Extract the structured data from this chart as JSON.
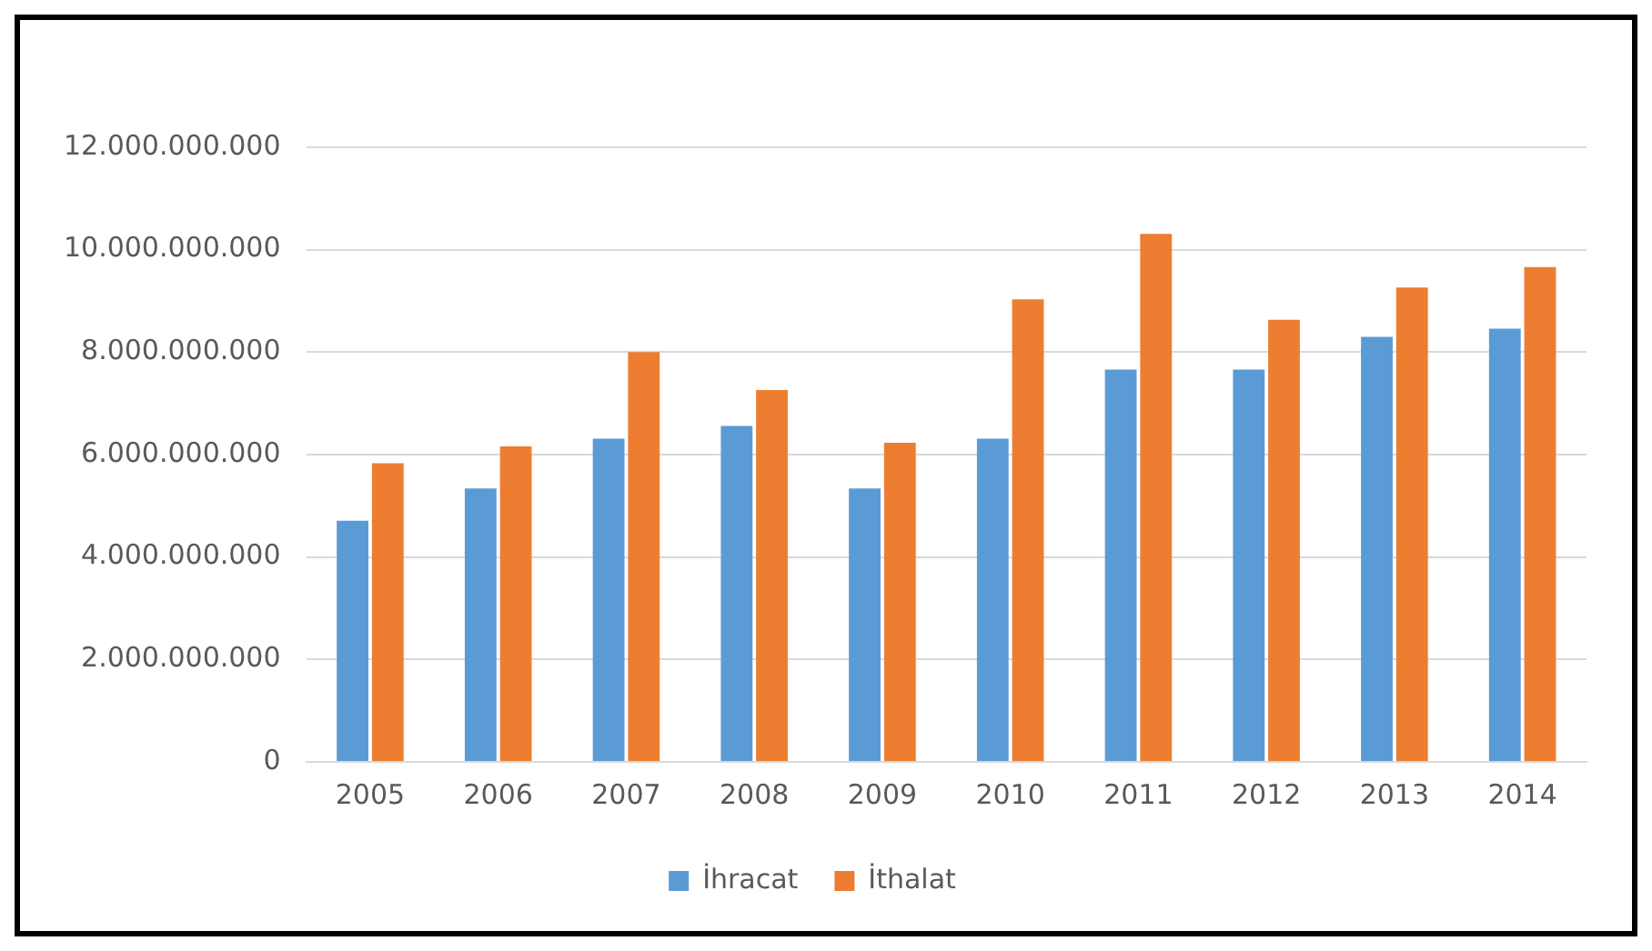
{
  "chart_data": {
    "type": "bar",
    "categories": [
      "2005",
      "2006",
      "2007",
      "2008",
      "2009",
      "2010",
      "2011",
      "2012",
      "2013",
      "2014"
    ],
    "series": [
      {
        "name": "İhracat",
        "color": "#5b9bd5",
        "values": [
          4710000000,
          5340000000,
          6310000000,
          6560000000,
          5340000000,
          6310000000,
          7660000000,
          7660000000,
          8300000000,
          8460000000
        ]
      },
      {
        "name": "İthalat",
        "color": "#ed7d31",
        "values": [
          5830000000,
          6160000000,
          8000000000,
          7260000000,
          6230000000,
          9030000000,
          10310000000,
          8630000000,
          9260000000,
          9660000000
        ]
      }
    ],
    "ylim": [
      0,
      12000000000
    ],
    "yticks": [
      0,
      {
        "value": 2000000000,
        "label": "2.000.000.000"
      },
      {
        "value": 4000000000,
        "label": "4.000.000.000"
      },
      {
        "value": 6000000000,
        "label": "6.000.000.000"
      },
      {
        "value": 8000000000,
        "label": "8.000.000.000"
      },
      {
        "value": 10000000000,
        "label": "10.000.000.000"
      },
      {
        "value": 12000000000,
        "label": "12.000.000.000"
      }
    ],
    "grid": "y",
    "legend": "bottom"
  }
}
